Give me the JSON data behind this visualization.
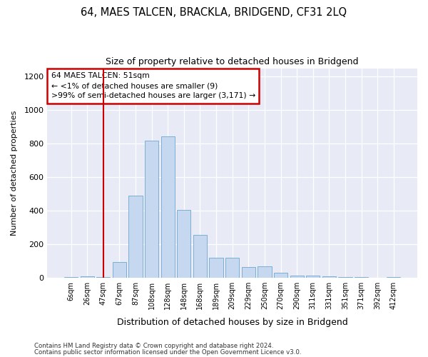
{
  "title": "64, MAES TALCEN, BRACKLA, BRIDGEND, CF31 2LQ",
  "subtitle": "Size of property relative to detached houses in Bridgend",
  "xlabel": "Distribution of detached houses by size in Bridgend",
  "ylabel": "Number of detached properties",
  "footer_line1": "Contains HM Land Registry data © Crown copyright and database right 2024.",
  "footer_line2": "Contains public sector information licensed under the Open Government Licence v3.0.",
  "categories": [
    "6sqm",
    "26sqm",
    "47sqm",
    "67sqm",
    "87sqm",
    "108sqm",
    "128sqm",
    "148sqm",
    "168sqm",
    "189sqm",
    "209sqm",
    "229sqm",
    "250sqm",
    "270sqm",
    "290sqm",
    "311sqm",
    "331sqm",
    "351sqm",
    "371sqm",
    "392sqm",
    "412sqm"
  ],
  "values": [
    5,
    10,
    5,
    95,
    490,
    820,
    845,
    405,
    255,
    120,
    120,
    65,
    68,
    30,
    15,
    15,
    10,
    5,
    5,
    0,
    5
  ],
  "bar_color": "#c5d8f0",
  "bar_edge_color": "#7aafd4",
  "property_line_x": 2.0,
  "annotation_line1": "64 MAES TALCEN: 51sqm",
  "annotation_line2": "← <1% of detached houses are smaller (9)",
  "annotation_line3": ">99% of semi-detached houses are larger (3,171) →",
  "annotation_box_color": "#ffffff",
  "annotation_box_edge_color": "#cc0000",
  "vline_color": "#cc0000",
  "bg_color": "#e8eaf6",
  "plot_bg_color": "#e8eaf6",
  "ylim": [
    0,
    1250
  ],
  "yticks": [
    0,
    200,
    400,
    600,
    800,
    1000,
    1200
  ]
}
